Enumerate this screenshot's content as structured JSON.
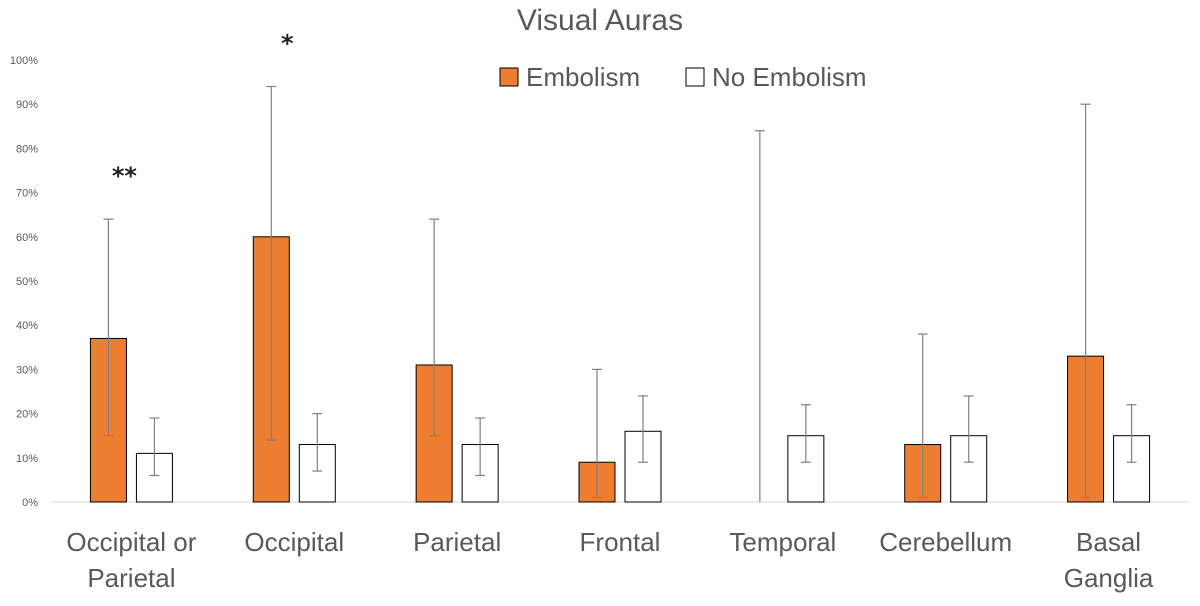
{
  "chart_data": {
    "type": "bar",
    "title": "Visual Auras",
    "xlabel": "",
    "ylabel": "",
    "ylim": [
      0,
      100
    ],
    "yticks": [
      "0%",
      "10%",
      "20%",
      "30%",
      "40%",
      "50%",
      "60%",
      "70%",
      "80%",
      "90%",
      "100%"
    ],
    "categories": [
      [
        "Occipital or",
        "Parietal"
      ],
      [
        "Occipital"
      ],
      [
        "Parietal"
      ],
      [
        "Frontal"
      ],
      [
        "Temporal"
      ],
      [
        "Cerebellum"
      ],
      [
        "Basal",
        "Ganglia"
      ]
    ],
    "series": [
      {
        "name": "Embolism",
        "color": "#ED7D31",
        "values": [
          37,
          60,
          31,
          9,
          0,
          13,
          33
        ],
        "err_low": [
          15,
          14,
          15,
          1,
          0,
          1,
          1
        ],
        "err_high": [
          64,
          94,
          64,
          30,
          84,
          38,
          90
        ]
      },
      {
        "name": "No Embolism",
        "color": "#FFFFFF",
        "values": [
          11,
          13,
          13,
          16,
          15,
          15,
          15
        ],
        "err_low": [
          6,
          7,
          6,
          9,
          9,
          9,
          9
        ],
        "err_high": [
          19,
          20,
          19,
          24,
          22,
          24,
          22
        ]
      }
    ],
    "annotations": [
      {
        "category_index": 0,
        "text": "**"
      },
      {
        "category_index": 1,
        "text": "*"
      }
    ],
    "legend_position": "top-center",
    "grid": false
  }
}
